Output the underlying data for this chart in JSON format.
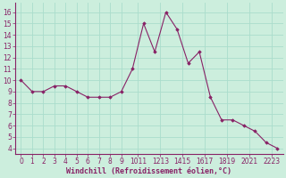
{
  "x": [
    0,
    1,
    2,
    3,
    4,
    5,
    6,
    7,
    8,
    9,
    10,
    11,
    12,
    13,
    14,
    15,
    16,
    17,
    18,
    19,
    20,
    21,
    22,
    23
  ],
  "y": [
    10,
    9,
    9,
    9.5,
    9.5,
    9,
    8.5,
    8.5,
    8.5,
    9,
    11,
    15,
    12.5,
    16,
    14.5,
    11.5,
    12.5,
    8.5,
    6.5,
    6.5,
    6,
    5.5,
    4.5,
    4
  ],
  "line_color": "#882266",
  "marker": "D",
  "marker_size": 1.8,
  "bg_color": "#cceedd",
  "grid_color": "#aaddcc",
  "xlabel": "Windchill (Refroidissement éolien,°C)",
  "xlabel_color": "#882266",
  "tick_color": "#882266",
  "axis_color": "#882266",
  "ylim": [
    3.5,
    16.8
  ],
  "xlim": [
    -0.5,
    23.5
  ],
  "yticks": [
    4,
    5,
    6,
    7,
    8,
    9,
    10,
    11,
    12,
    13,
    14,
    15,
    16
  ],
  "xtick_labels": [
    "0",
    "1",
    "2",
    "3",
    "4",
    "5",
    "6",
    "7",
    "8",
    "9",
    "1011",
    "1213",
    "1415",
    "1617",
    "1819",
    "2021",
    "2223"
  ],
  "xtick_positions": [
    0,
    1,
    2,
    3,
    4,
    5,
    6,
    7,
    8,
    9,
    10.5,
    12.5,
    14.5,
    16.5,
    18.5,
    20.5,
    22.5
  ],
  "xlabel_fontsize": 6,
  "tick_fontsize": 5.5
}
